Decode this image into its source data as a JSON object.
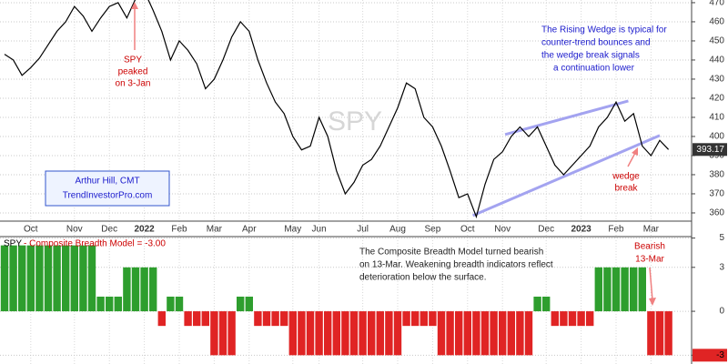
{
  "chart_data": [
    {
      "type": "line",
      "watermark": "SPY",
      "categories": [
        null,
        null,
        null,
        "Oct",
        null,
        null,
        null,
        null,
        "Nov",
        null,
        null,
        null,
        "Dec",
        null,
        null,
        null,
        "2022",
        null,
        null,
        null,
        "Feb",
        null,
        null,
        null,
        "Mar",
        null,
        null,
        null,
        "Apr",
        null,
        null,
        null,
        null,
        "May",
        null,
        null,
        "Jun",
        null,
        null,
        null,
        null,
        "Jul",
        null,
        null,
        null,
        "Aug",
        null,
        null,
        null,
        "Sep",
        null,
        null,
        null,
        "Oct",
        null,
        null,
        null,
        "Nov",
        null,
        null,
        null,
        null,
        "Dec",
        null,
        null,
        null,
        "2023",
        null,
        null,
        null,
        "Feb",
        null,
        null,
        null,
        "Mar",
        null,
        null
      ],
      "series": [
        {
          "name": "SPY",
          "color": "#000000",
          "values": [
            443,
            440,
            432,
            436,
            441,
            448,
            455,
            460,
            468,
            463,
            455,
            462,
            468,
            470,
            462,
            472,
            476,
            466,
            455,
            440,
            450,
            445,
            438,
            425,
            430,
            440,
            452,
            460,
            455,
            440,
            428,
            418,
            412,
            400,
            393,
            395,
            410,
            400,
            382,
            370,
            376,
            385,
            388,
            395,
            405,
            415,
            428,
            425,
            410,
            405,
            395,
            382,
            368,
            370,
            358,
            375,
            388,
            392,
            400,
            405,
            400,
            405,
            395,
            385,
            380,
            385,
            390,
            395,
            405,
            410,
            418,
            408,
            412,
            395,
            390,
            398,
            393.17
          ]
        }
      ],
      "last_value": 393.17,
      "ylim": [
        355.7,
        471.4
      ],
      "yticks": [
        360,
        370,
        380,
        390,
        400,
        410,
        420,
        430,
        440,
        450,
        460,
        470
      ],
      "grid": true,
      "trendlines": [
        {
          "color": "#a3a3f0",
          "x": [
            53.6,
            75
          ],
          "values": [
            358.6,
            400.5
          ]
        },
        {
          "color": "#a3a3f0",
          "x": [
            57.3,
            71.4
          ],
          "values": [
            401,
            418.6
          ]
        }
      ],
      "annotations": {
        "peak": [
          "SPY",
          "peaked",
          "on 3-Jan"
        ],
        "wedge_note": [
          "The Rising Wedge is typical for",
          "counter-trend bounces and",
          "the wedge break signals",
          "a continuation lower"
        ],
        "author": [
          "Arthur Hill, CMT",
          "TrendInvestorPro.com"
        ],
        "wedge_break": [
          "wedge",
          "break"
        ]
      }
    },
    {
      "type": "bar",
      "panel_label": "SPY",
      "title": "- Composite Breadth Model = -3.00",
      "values": [
        4.5,
        4.5,
        4.5,
        4.5,
        4.5,
        4.5,
        4.5,
        4.5,
        4.5,
        4.5,
        4.5,
        1,
        1,
        1,
        3,
        3,
        3,
        3,
        -1,
        1,
        1,
        -1,
        -1,
        -1,
        -3,
        -3,
        -3,
        1,
        1,
        -1,
        -1,
        -1,
        -1,
        -3,
        -3,
        -3,
        -3,
        -3,
        -3,
        -3,
        -3,
        -3,
        -3,
        -3,
        -3,
        -3,
        -1,
        -1,
        -1,
        -1,
        -3,
        -3,
        -3,
        -3,
        -3,
        -3,
        -3,
        -3,
        -3,
        -3,
        -3,
        1,
        1,
        -1,
        -1,
        -1,
        -1,
        -1,
        3,
        3,
        3,
        3,
        3,
        3,
        -3,
        -3,
        -3
      ],
      "colors": {
        "positive": "#2e9e2e",
        "negative": "#e02424"
      },
      "last_value": -3,
      "ylim": [
        -3.6,
        5.1
      ],
      "yticks": [
        5,
        3,
        0,
        -3
      ],
      "grid": true,
      "annotations": {
        "note": [
          "The Composite Breadth Model turned bearish",
          "on 13-Mar. Weakening breadth indicators reflect",
          "deterioration below the surface."
        ],
        "signal": [
          "Bearish",
          "13-Mar"
        ]
      }
    }
  ]
}
